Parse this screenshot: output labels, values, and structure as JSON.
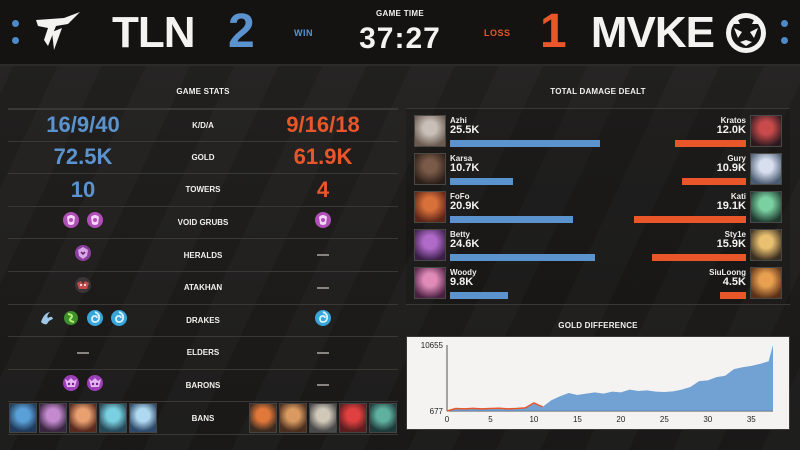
{
  "header": {
    "game_time_label": "GAME TIME",
    "game_time": "37:27",
    "left_team": {
      "name": "TLN",
      "score": "2",
      "result": "WIN",
      "color": "#5b93cf"
    },
    "right_team": {
      "name": "MVKE",
      "score": "1",
      "result": "LOSS",
      "color": "#e8562a"
    }
  },
  "game_stats": {
    "title": "GAME STATS",
    "rows": [
      {
        "label": "K/D/A",
        "left": "16/9/40",
        "right": "9/16/18"
      },
      {
        "label": "GOLD",
        "left": "72.5K",
        "right": "61.9K"
      },
      {
        "label": "TOWERS",
        "left": "10",
        "right": "4"
      },
      {
        "label": "VOID GRUBS",
        "left_icons": [
          "void-grub-icon",
          "void-grub-icon"
        ],
        "right_icons": [
          "void-grub-icon"
        ]
      },
      {
        "label": "HERALDS",
        "left_icons": [
          "herald-icon"
        ],
        "right_icons": []
      },
      {
        "label": "ATAKHAN",
        "left_icons": [
          "atakhan-icon"
        ],
        "right_icons": []
      },
      {
        "label": "DRAKES",
        "left_icons": [
          "cloud-drake-icon",
          "chemtech-drake-icon",
          "ocean-drake-icon",
          "ocean-drake-icon"
        ],
        "right_icons": [
          "ocean-drake-icon"
        ]
      },
      {
        "label": "ELDERS",
        "left_icons": [],
        "right_icons": []
      },
      {
        "label": "BARONS",
        "left_icons": [
          "baron-icon",
          "baron-icon"
        ],
        "right_icons": []
      },
      {
        "label": "BANS",
        "left_icons": [
          "ban-champion-1",
          "ban-champion-2",
          "ban-champion-3",
          "ban-champion-4",
          "ban-champion-5"
        ],
        "right_icons": [
          "ban-champion-6",
          "ban-champion-7",
          "ban-champion-8",
          "ban-champion-9",
          "ban-champion-10"
        ]
      }
    ]
  },
  "damage": {
    "title": "TOTAL DAMAGE DEALT",
    "max": 25.5,
    "left_players": [
      {
        "name": "Azhi",
        "damage": "25.5K",
        "value": 25.5
      },
      {
        "name": "Karsa",
        "damage": "10.7K",
        "value": 10.7
      },
      {
        "name": "FoFo",
        "damage": "20.9K",
        "value": 20.9
      },
      {
        "name": "Betty",
        "damage": "24.6K",
        "value": 24.6
      },
      {
        "name": "Woody",
        "damage": "9.8K",
        "value": 9.8
      }
    ],
    "right_players": [
      {
        "name": "Kratos",
        "damage": "12.0K",
        "value": 12.0
      },
      {
        "name": "Gury",
        "damage": "10.9K",
        "value": 10.9
      },
      {
        "name": "Kati",
        "damage": "19.1K",
        "value": 19.1
      },
      {
        "name": "Sty1e",
        "damage": "15.9K",
        "value": 15.9
      },
      {
        "name": "SiuLoong",
        "damage": "4.5K",
        "value": 4.5
      }
    ]
  },
  "chart_data": {
    "type": "area",
    "title": "GOLD DIFFERENCE",
    "xlabel": "",
    "ylabel": "",
    "x_ticks": [
      0,
      5,
      10,
      15,
      20,
      25,
      30,
      35
    ],
    "y_ticks": [
      677,
      10655
    ],
    "xlim": [
      0,
      37.5
    ],
    "ylim": [
      677,
      10655
    ],
    "x": [
      0,
      1,
      2,
      3,
      4,
      5,
      6,
      7,
      8,
      9,
      10,
      11,
      12,
      13,
      14,
      15,
      16,
      17,
      18,
      19,
      20,
      21,
      22,
      23,
      24,
      25,
      26,
      27,
      28,
      29,
      30,
      31,
      32,
      33,
      34,
      35,
      36,
      37,
      37.5
    ],
    "values": [
      677,
      1050,
      1000,
      1080,
      1000,
      1060,
      1100,
      1000,
      1050,
      1150,
      1900,
      1300,
      2300,
      2900,
      3400,
      3100,
      3300,
      3500,
      3300,
      3600,
      3500,
      3900,
      3700,
      3800,
      3600,
      3550,
      3650,
      3900,
      4300,
      5200,
      5300,
      5800,
      6000,
      7000,
      7300,
      7500,
      7800,
      8200,
      10655
    ],
    "area_color": "#5b93cf",
    "negative_color": "#e8562a"
  }
}
